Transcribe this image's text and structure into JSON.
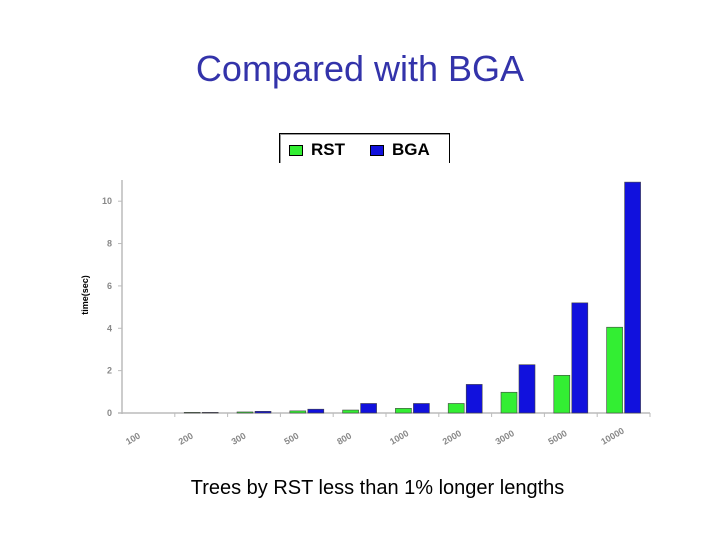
{
  "slide": {
    "title": "Compared with BGA",
    "caption": "Trees by RST less than 1% longer lengths"
  },
  "colors": {
    "title": "#3333aa",
    "rst": "#33ee33",
    "bga": "#1111dd",
    "axis": "#bbbbbb",
    "tick_label": "#888888"
  },
  "chart_data": {
    "type": "bar",
    "categories": [
      "100",
      "200",
      "300",
      "500",
      "800",
      "1000",
      "2000",
      "3000",
      "5000",
      "10000"
    ],
    "series": [
      {
        "name": "RST",
        "values": [
          0,
          0.03,
          0.05,
          0.1,
          0.14,
          0.22,
          0.45,
          0.98,
          1.78,
          4.05
        ]
      },
      {
        "name": "BGA",
        "values": [
          0,
          0.03,
          0.08,
          0.18,
          0.45,
          0.45,
          1.35,
          2.28,
          5.2,
          10.9
        ]
      }
    ],
    "ylabel": "time(sec)",
    "xlabel": "",
    "ylim": [
      0,
      11
    ],
    "yticks": [
      0,
      2,
      4,
      6,
      8,
      10
    ],
    "legend": "top",
    "grid": false
  }
}
